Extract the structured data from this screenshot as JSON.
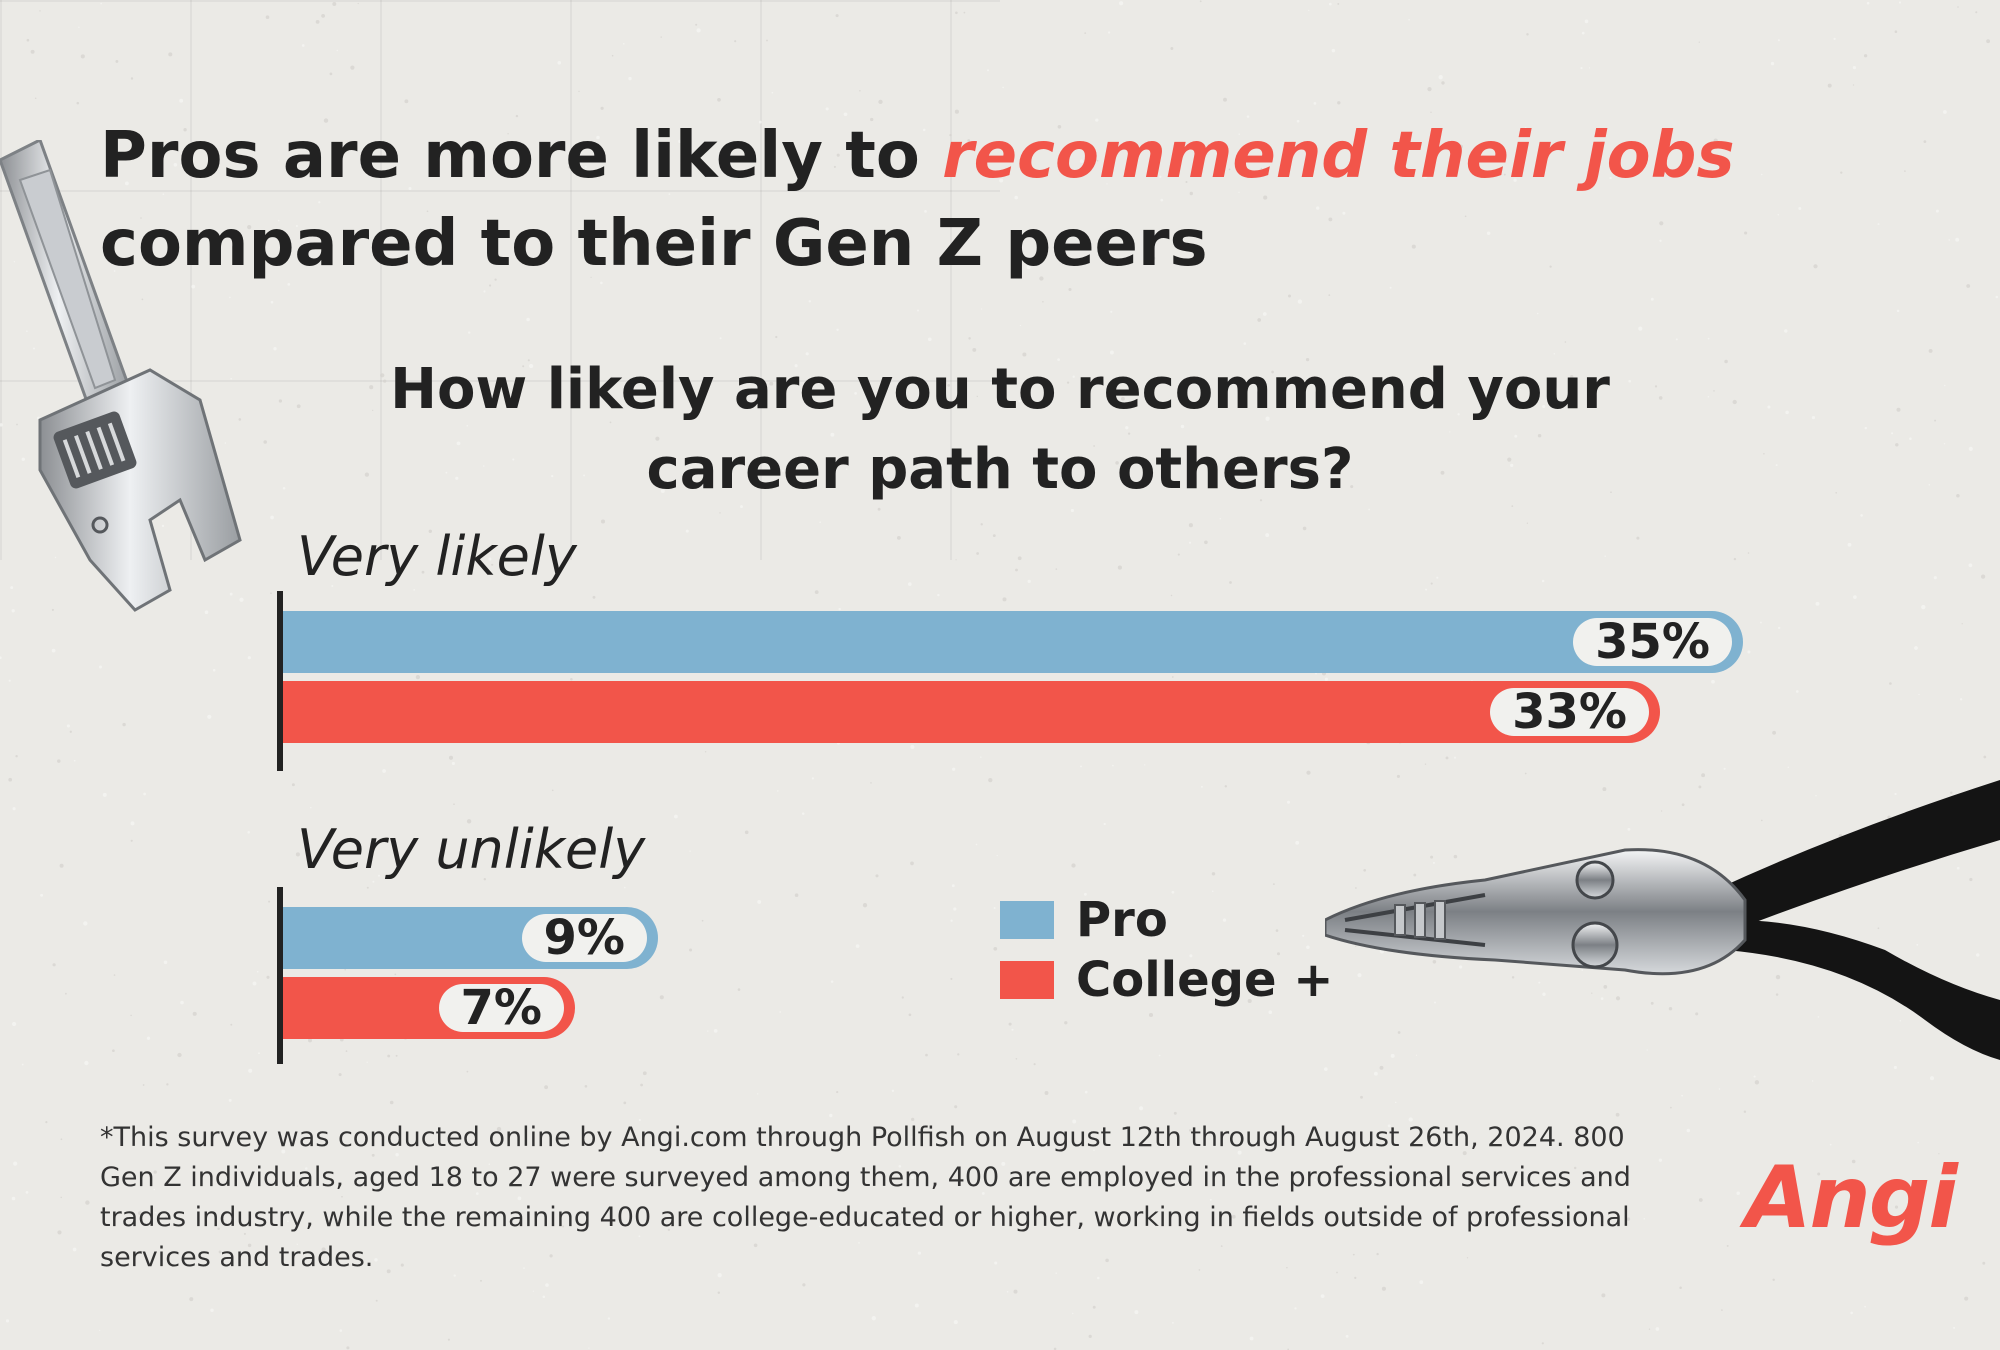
{
  "header": {
    "title_part1": "Pros are more likely to ",
    "title_highlight": "recommend their jobs",
    "title_part2": "compared to their Gen Z peers"
  },
  "chart_data": {
    "type": "bar",
    "orientation": "horizontal",
    "title": "How likely are you to recommend your career path to others?",
    "categories": [
      "Very likely",
      "Very unlikely"
    ],
    "series": [
      {
        "name": "Pro",
        "color": "#7fb2d0",
        "values": [
          35,
          9
        ]
      },
      {
        "name": "College +",
        "color": "#f2554a",
        "values": [
          33,
          7
        ]
      }
    ],
    "value_suffix": "%",
    "legend_position": "bottom-center"
  },
  "footnote": "*This survey was conducted online by Angi.com through Pollfish on August 12th through August 26th, 2024. 800 Gen Z individuals, aged 18 to 27 were surveyed among them, 400 are employed in the professional services and trades industry, while the remaining 400 are college-educated or higher, working in fields outside of professional services and trades.",
  "logo": {
    "text": "Angi",
    "color": "#f2554a"
  },
  "illustrations": [
    "adjustable-wrench-icon",
    "pliers-icon"
  ]
}
